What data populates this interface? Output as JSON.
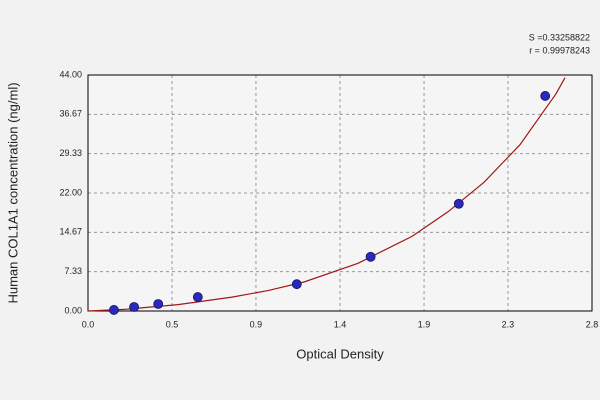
{
  "chart_data": {
    "type": "scatter",
    "x_label": "Optical Density",
    "y_label": "Human COL1A1 concentration (ng/ml)",
    "annotations": [
      "S =0.33258822",
      "r = 0.99978243"
    ],
    "xlim": [
      0,
      2.8
    ],
    "ylim": [
      0,
      44
    ],
    "xticks": [
      {
        "value": 0,
        "label": "0.0"
      },
      {
        "value": 0.467,
        "label": "0.5"
      },
      {
        "value": 0.933,
        "label": "0.9"
      },
      1.4,
      {
        "value": 1.867,
        "label": "1.9"
      },
      {
        "value": 2.333,
        "label": "2.3"
      },
      2.8
    ],
    "yticks": [
      {
        "value": 0,
        "label": "0.00"
      },
      {
        "value": 7.333,
        "label": "7.33"
      },
      {
        "value": 14.667,
        "label": "14.67"
      },
      {
        "value": 22,
        "label": "22.00"
      },
      {
        "value": 29.333,
        "label": "29.33"
      },
      {
        "value": 36.667,
        "label": "36.67"
      },
      {
        "value": 44,
        "label": "44.00"
      }
    ],
    "grid": true,
    "series": [
      {
        "color": "#2a2ab8",
        "x": [
          0.144,
          0.256,
          0.39,
          0.61,
          1.16,
          1.57,
          2.06,
          2.54
        ],
        "values": [
          0.2,
          0.75,
          1.3,
          2.6,
          5.0,
          10.1,
          20.0,
          40.1
        ]
      }
    ],
    "fit_curve": {
      "color": "#a01818",
      "x": [
        0,
        0.2,
        0.5,
        0.8,
        1.0,
        1.2,
        1.5,
        1.8,
        2.0,
        2.2,
        2.4,
        2.6,
        2.65
      ],
      "values": [
        0,
        0.3,
        1.2,
        2.6,
        3.8,
        5.4,
        8.9,
        13.9,
        18.5,
        24.0,
        31.0,
        40.5,
        43.5
      ]
    }
  }
}
